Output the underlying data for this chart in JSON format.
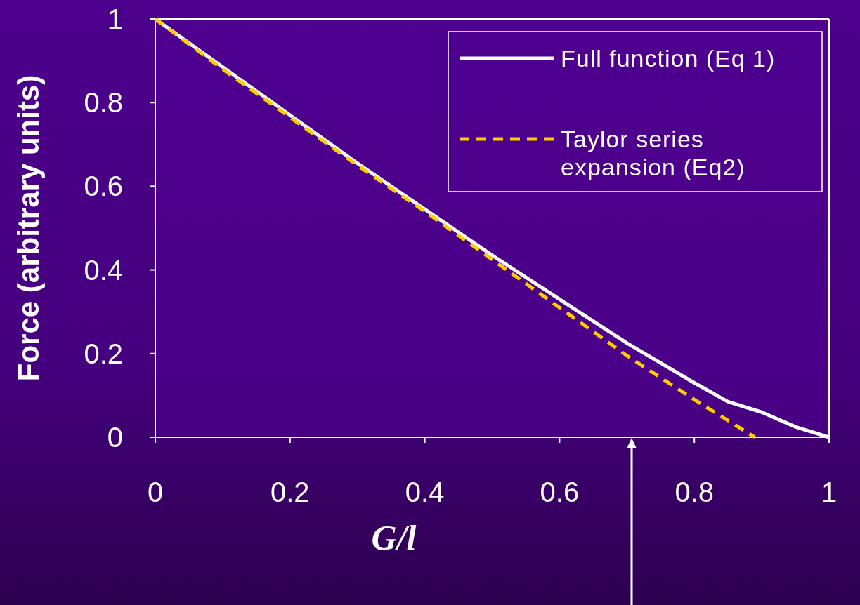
{
  "chart_data": {
    "type": "line",
    "xlabel": "G/l",
    "ylabel": "Force (arbitrary units)",
    "xlim": [
      0,
      1
    ],
    "ylim": [
      0,
      1
    ],
    "xticks": [
      0,
      0.2,
      0.4,
      0.6,
      0.8,
      1
    ],
    "yticks": [
      0,
      0.2,
      0.4,
      0.6,
      0.8,
      1
    ],
    "grid": false,
    "legend": "top right",
    "marker": "none",
    "series": [
      {
        "name": "Full function (Eq 1)",
        "color": "#ffffff",
        "line_style": "solid",
        "x": [
          0,
          0.1,
          0.2,
          0.3,
          0.4,
          0.5,
          0.6,
          0.7,
          0.8,
          0.85,
          0.9,
          0.95,
          1
        ],
        "values": [
          1,
          0.885,
          0.77,
          0.655,
          0.545,
          0.435,
          0.33,
          0.225,
          0.13,
          0.085,
          0.06,
          0.025,
          0
        ]
      },
      {
        "name": "Taylor series expansion (Eq2)",
        "color": "#ffcc00",
        "line_style": "dashed",
        "x": [
          0,
          0.1,
          0.2,
          0.3,
          0.4,
          0.5,
          0.6,
          0.7,
          0.8,
          0.85,
          0.89
        ],
        "values": [
          1,
          0.88,
          0.765,
          0.65,
          0.54,
          0.425,
          0.31,
          0.195,
          0.09,
          0.04,
          0
        ]
      }
    ]
  }
}
